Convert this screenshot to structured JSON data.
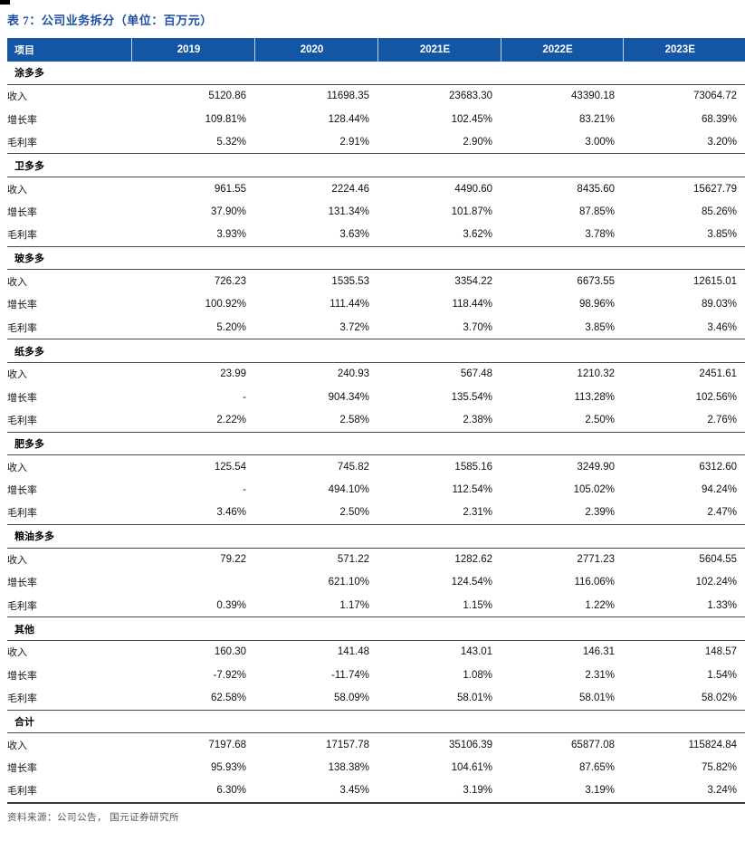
{
  "title": "表 7：公司业务拆分（单位：百万元）",
  "source_note": "资料来源：公司公告， 国元证券研究所",
  "colors": {
    "header_bg": "#1456a4",
    "header_text": "#ffffff",
    "title_text": "#1e4fa1",
    "section_border": "#4a4a4a",
    "source_text": "#595959"
  },
  "table": {
    "columns": [
      "项目",
      "2019",
      "2020",
      "2021E",
      "2022E",
      "2023E"
    ],
    "sections": [
      {
        "name": "涂多多",
        "rows": [
          {
            "label": "收入",
            "values": [
              "5120.86",
              "11698.35",
              "23683.30",
              "43390.18",
              "73064.72"
            ]
          },
          {
            "label": "增长率",
            "values": [
              "109.81%",
              "128.44%",
              "102.45%",
              "83.21%",
              "68.39%"
            ]
          },
          {
            "label": "毛利率",
            "values": [
              "5.32%",
              "2.91%",
              "2.90%",
              "3.00%",
              "3.20%"
            ]
          }
        ]
      },
      {
        "name": "卫多多",
        "rows": [
          {
            "label": "收入",
            "values": [
              "961.55",
              "2224.46",
              "4490.60",
              "8435.60",
              "15627.79"
            ]
          },
          {
            "label": "增长率",
            "values": [
              "37.90%",
              "131.34%",
              "101.87%",
              "87.85%",
              "85.26%"
            ]
          },
          {
            "label": "毛利率",
            "values": [
              "3.93%",
              "3.63%",
              "3.62%",
              "3.78%",
              "3.85%"
            ]
          }
        ]
      },
      {
        "name": "玻多多",
        "rows": [
          {
            "label": "收入",
            "values": [
              "726.23",
              "1535.53",
              "3354.22",
              "6673.55",
              "12615.01"
            ]
          },
          {
            "label": "增长率",
            "values": [
              "100.92%",
              "111.44%",
              "118.44%",
              "98.96%",
              "89.03%"
            ]
          },
          {
            "label": "毛利率",
            "values": [
              "5.20%",
              "3.72%",
              "3.70%",
              "3.85%",
              "3.46%"
            ]
          }
        ]
      },
      {
        "name": "纸多多",
        "rows": [
          {
            "label": "收入",
            "values": [
              "23.99",
              "240.93",
              "567.48",
              "1210.32",
              "2451.61"
            ]
          },
          {
            "label": "增长率",
            "values": [
              "-",
              "904.34%",
              "135.54%",
              "113.28%",
              "102.56%"
            ]
          },
          {
            "label": "毛利率",
            "values": [
              "2.22%",
              "2.58%",
              "2.38%",
              "2.50%",
              "2.76%"
            ]
          }
        ]
      },
      {
        "name": "肥多多",
        "rows": [
          {
            "label": "收入",
            "values": [
              "125.54",
              "745.82",
              "1585.16",
              "3249.90",
              "6312.60"
            ]
          },
          {
            "label": "增长率",
            "values": [
              "-",
              "494.10%",
              "112.54%",
              "105.02%",
              "94.24%"
            ]
          },
          {
            "label": "毛利率",
            "values": [
              "3.46%",
              "2.50%",
              "2.31%",
              "2.39%",
              "2.47%"
            ]
          }
        ]
      },
      {
        "name": "粮油多多",
        "rows": [
          {
            "label": "收入",
            "values": [
              "79.22",
              "571.22",
              "1282.62",
              "2771.23",
              "5604.55"
            ]
          },
          {
            "label": "增长率",
            "values": [
              "",
              "621.10%",
              "124.54%",
              "116.06%",
              "102.24%"
            ]
          },
          {
            "label": "毛利率",
            "values": [
              "0.39%",
              "1.17%",
              "1.15%",
              "1.22%",
              "1.33%"
            ]
          }
        ]
      },
      {
        "name": "其他",
        "rows": [
          {
            "label": "收入",
            "values": [
              "160.30",
              "141.48",
              "143.01",
              "146.31",
              "148.57"
            ]
          },
          {
            "label": "增长率",
            "values": [
              "-7.92%",
              "-11.74%",
              "1.08%",
              "2.31%",
              "1.54%"
            ]
          },
          {
            "label": "毛利率",
            "values": [
              "62.58%",
              "58.09%",
              "58.01%",
              "58.01%",
              "58.02%"
            ]
          }
        ]
      },
      {
        "name": "合计",
        "rows": [
          {
            "label": "收入",
            "values": [
              "7197.68",
              "17157.78",
              "35106.39",
              "65877.08",
              "115824.84"
            ]
          },
          {
            "label": "增长率",
            "values": [
              "95.93%",
              "138.38%",
              "104.61%",
              "87.65%",
              "75.82%"
            ]
          },
          {
            "label": "毛利率",
            "values": [
              "6.30%",
              "3.45%",
              "3.19%",
              "3.19%",
              "3.24%"
            ]
          }
        ]
      }
    ]
  }
}
